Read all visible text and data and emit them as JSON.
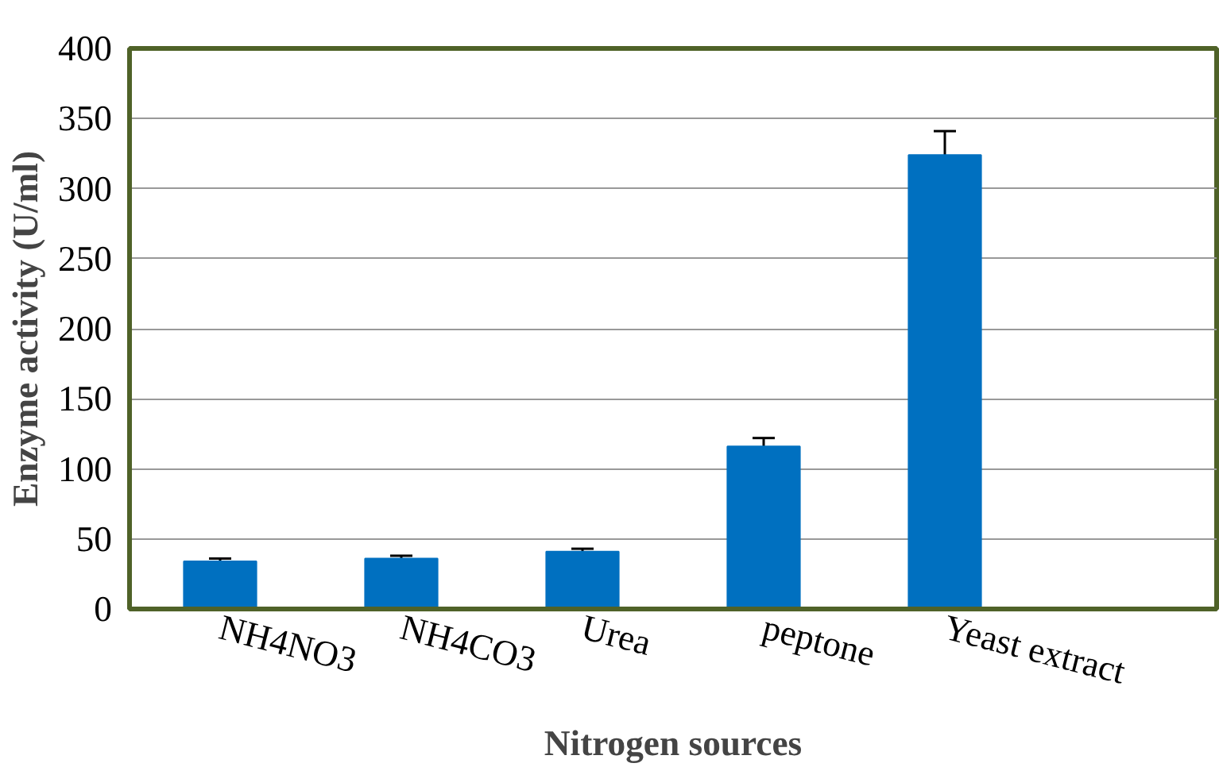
{
  "chart_data": {
    "type": "bar",
    "xlabel": "Nitrogen sources",
    "ylabel": "Enzyme activity (U/ml)",
    "categories": [
      "NH4NO3",
      "NH4CO3",
      "Urea",
      "peptone",
      "Yeast extract",
      null
    ],
    "values": [
      34,
      36,
      41,
      116,
      324,
      null
    ],
    "errors": [
      2,
      2,
      2,
      6,
      17,
      null
    ],
    "color": "#0070c0",
    "ylim": [
      0,
      400
    ],
    "yticks": [
      0,
      50,
      100,
      150,
      200,
      250,
      300,
      350,
      400
    ],
    "grid": "y"
  }
}
